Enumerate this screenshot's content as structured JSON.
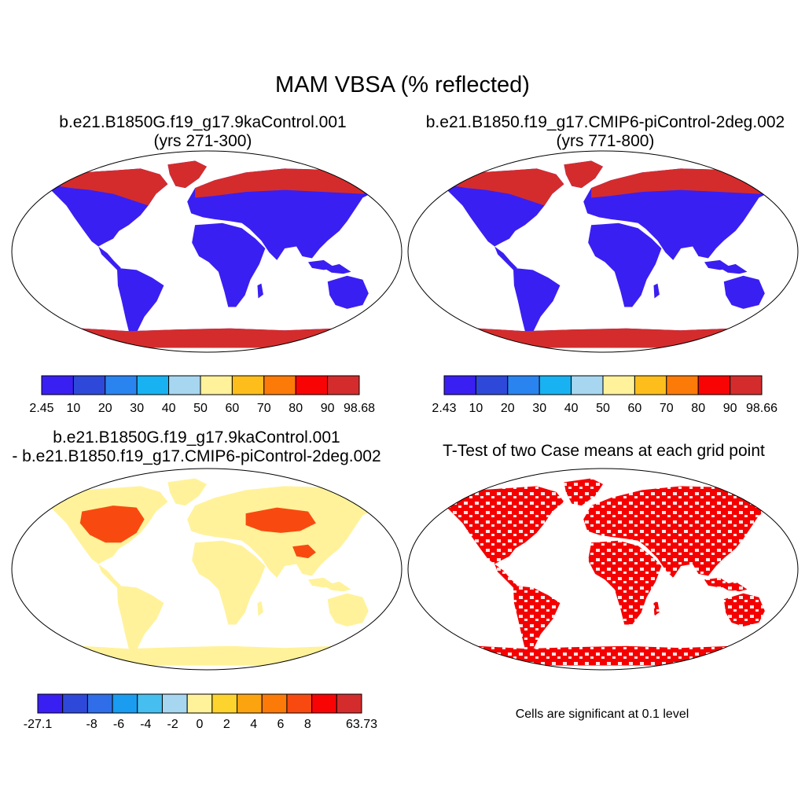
{
  "title": "MAM VBSA (% reflected)",
  "panels": [
    {
      "title_line1": "b.e21.B1850G.f19_g17.9kaControl.001",
      "title_line2": "(yrs 271-300)",
      "kind": "field"
    },
    {
      "title_line1": "b.e21.B1850.f19_g17.CMIP6-piControl-2deg.002",
      "title_line2": "(yrs 771-800)",
      "kind": "field"
    },
    {
      "title_line1": "b.e21.B1850G.f19_g17.9kaControl.001",
      "title_line2": "- b.e21.B1850.f19_g17.CMIP6-piControl-2deg.002",
      "kind": "difference"
    },
    {
      "title_line1": "T-Test of two Case means at each grid point",
      "title_line2": "",
      "kind": "significance",
      "note": "Cells are significant at 0.1 level"
    }
  ],
  "colorbars": [
    {
      "labels": [
        "2.45",
        "10",
        "20",
        "30",
        "40",
        "50",
        "60",
        "70",
        "80",
        "90",
        "98.68"
      ],
      "colors": [
        "#3a1ff2",
        "#2e49d9",
        "#2a84ef",
        "#18b2f2",
        "#a7d6f0",
        "#fff29a",
        "#fdbe1b",
        "#fc7a08",
        "#f90404",
        "#d42c2c"
      ]
    },
    {
      "labels": [
        "2.43",
        "10",
        "20",
        "30",
        "40",
        "50",
        "60",
        "70",
        "80",
        "90",
        "98.66"
      ],
      "colors": [
        "#3a1ff2",
        "#2e49d9",
        "#2a84ef",
        "#18b2f2",
        "#a7d6f0",
        "#fff29a",
        "#fdbe1b",
        "#fc7a08",
        "#f90404",
        "#d42c2c"
      ]
    },
    {
      "labels": [
        "-27.1",
        "",
        "-8",
        "-6",
        "-4",
        "-2",
        "0",
        "2",
        "4",
        "6",
        "8",
        "",
        "63.73"
      ],
      "colors": [
        "#3a1ff2",
        "#2e49d9",
        "#2f6ee8",
        "#1a9cf0",
        "#46bff0",
        "#a7d6f0",
        "#fff29a",
        "#fdd32d",
        "#fca40f",
        "#fc7a08",
        "#f84a10",
        "#f90404",
        "#d42c2c"
      ]
    }
  ],
  "significance_color": "#f40000"
}
